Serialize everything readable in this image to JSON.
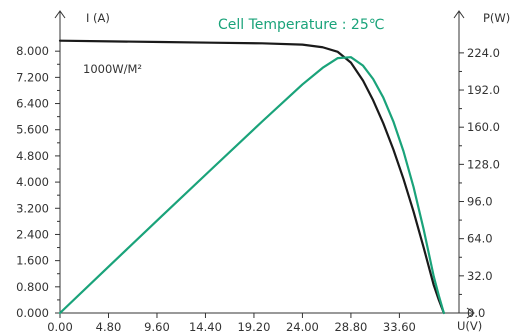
{
  "chart_data": {
    "type": "line",
    "title": "Cell Temperature : 25℃",
    "annotation": "1000W/M²",
    "x_axis": {
      "label": "U(V)",
      "range": [
        0,
        39.5
      ],
      "ticks": [
        "0.00",
        "4.80",
        "9.60",
        "14.40",
        "19.20",
        "24.00",
        "28.80",
        "33.60"
      ],
      "tick_values": [
        0,
        4.8,
        9.6,
        14.4,
        19.2,
        24.0,
        28.8,
        33.6
      ]
    },
    "y_left_axis": {
      "label": "I (A)",
      "range": [
        0,
        8.8
      ],
      "ticks": [
        "0.000",
        "0.800",
        "1.600",
        "2.400",
        "3.200",
        "4.000",
        "4.800",
        "5.600",
        "6.400",
        "7.200",
        "8.000"
      ],
      "tick_values": [
        0,
        0.8,
        1.6,
        2.4,
        3.2,
        4.0,
        4.8,
        5.6,
        6.4,
        7.2,
        8.0
      ]
    },
    "y_right_axis": {
      "label": "P(W)",
      "range": [
        0,
        248
      ],
      "ticks": [
        "0.0",
        "32.0",
        "64.0",
        "96.0",
        "128.0",
        "160.0",
        "192.0",
        "224.0"
      ],
      "tick_values": [
        0,
        32,
        64,
        96,
        128,
        160,
        192,
        224
      ]
    },
    "series": [
      {
        "axis": "left",
        "color": "#1a1a1a",
        "x": [
          0,
          5,
          10,
          15,
          20,
          24,
          26,
          27.5,
          28.8,
          30,
          31,
          32,
          33,
          34,
          35,
          36,
          37,
          37.5,
          38
        ],
        "y": [
          8.32,
          8.3,
          8.28,
          8.26,
          8.24,
          8.2,
          8.12,
          7.98,
          7.65,
          7.1,
          6.5,
          5.8,
          5.0,
          4.1,
          3.1,
          2.0,
          0.85,
          0.4,
          0.0
        ]
      },
      {
        "axis": "right",
        "color": "#1aa37a",
        "x": [
          0,
          5,
          10,
          15,
          20,
          24,
          26,
          27.5,
          28.8,
          30,
          31,
          32,
          33,
          34,
          35,
          36,
          37,
          37.5,
          38
        ],
        "y": [
          0,
          41.5,
          82.8,
          123.9,
          164.8,
          196.8,
          211.1,
          219.5,
          220.3,
          213.0,
          201.5,
          185.6,
          165.0,
          139.4,
          108.5,
          72.0,
          31.5,
          15.0,
          0
        ]
      }
    ],
    "grid": false,
    "legend": "none"
  }
}
